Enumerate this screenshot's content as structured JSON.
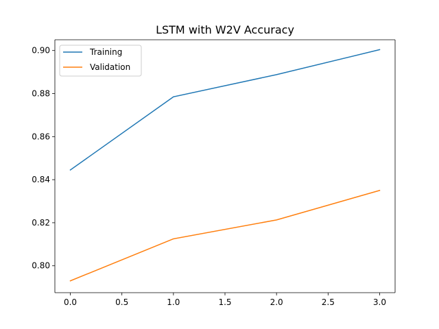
{
  "chart_data": {
    "type": "line",
    "title": "LSTM with W2V Accuracy",
    "xlabel": "",
    "ylabel": "",
    "xlim": [
      -0.15,
      3.15
    ],
    "ylim": [
      0.7875,
      0.905
    ],
    "xticks": [
      0.0,
      0.5,
      1.0,
      1.5,
      2.0,
      2.5,
      3.0
    ],
    "xtick_labels": [
      "0.0",
      "0.5",
      "1.0",
      "1.5",
      "2.0",
      "2.5",
      "3.0"
    ],
    "yticks": [
      0.8,
      0.82,
      0.84,
      0.86,
      0.88,
      0.9
    ],
    "ytick_labels": [
      "0.80",
      "0.82",
      "0.84",
      "0.86",
      "0.88",
      "0.90"
    ],
    "grid": false,
    "legend_position": "top-left",
    "x": [
      0,
      1,
      2,
      3
    ],
    "series": [
      {
        "name": "Training",
        "values": [
          0.8445,
          0.8785,
          0.8888,
          0.9004
        ],
        "color": "#1f77b4"
      },
      {
        "name": "Validation",
        "values": [
          0.793,
          0.8125,
          0.8213,
          0.835
        ],
        "color": "#ff7f0e"
      }
    ]
  }
}
